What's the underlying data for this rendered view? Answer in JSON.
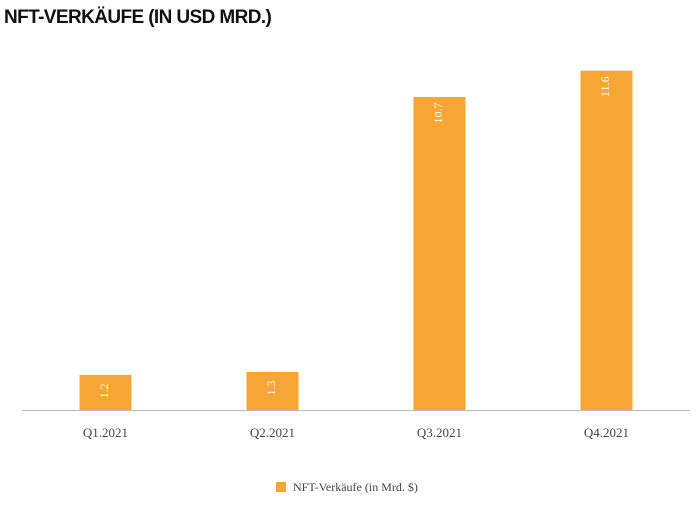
{
  "chart_data": {
    "type": "bar",
    "title": "NFT-VERKÄUFE (IN USD MRD.)",
    "categories": [
      "Q1.2021",
      "Q2.2021",
      "Q3.2021",
      "Q4.2021"
    ],
    "series": [
      {
        "name": "NFT-Verkäufe (in Mrd. $)",
        "color": "#f7a535",
        "values": [
          1.2,
          1.3,
          10.7,
          11.6
        ]
      }
    ],
    "ylim": [
      0,
      12
    ],
    "grid": false,
    "legend": "bottom"
  }
}
